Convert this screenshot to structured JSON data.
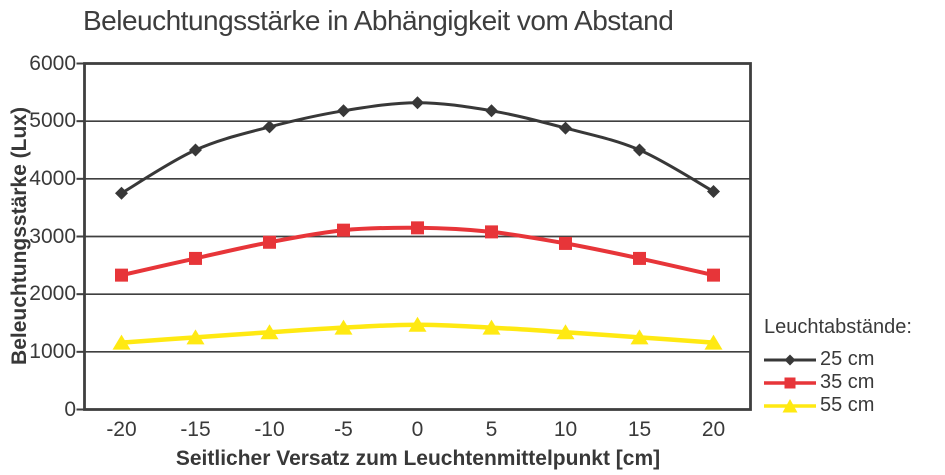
{
  "figure": {
    "background": "#ffffff",
    "text_color": "#3a3a3a",
    "axis_color": "#3f3f3f"
  },
  "chart_data": {
    "type": "line",
    "title": "Beleuchtungsstärke in Abhängigkeit vom Abstand",
    "xlabel": "Seitlicher Versatz zum Leuchtenmittelpunkt [cm]",
    "ylabel": "Beleuchtungsstärke (Lux)",
    "x": [
      -20,
      -15,
      -10,
      -5,
      0,
      5,
      10,
      15,
      20
    ],
    "ylim": [
      0,
      6000
    ],
    "yticks": [
      0,
      1000,
      2000,
      3000,
      4000,
      5000,
      6000
    ],
    "grid": "horizontal",
    "legend_title": "Leuchtabstände:",
    "legend_position": "right",
    "series": [
      {
        "name": "25 cm",
        "marker": "diamond",
        "color": "#383838",
        "values": [
          3750,
          4500,
          4900,
          5180,
          5320,
          5180,
          4880,
          4500,
          3780
        ]
      },
      {
        "name": "35 cm",
        "marker": "square",
        "color": "#e73539",
        "values": [
          2330,
          2620,
          2900,
          3110,
          3150,
          3080,
          2880,
          2620,
          2330
        ]
      },
      {
        "name": "55 cm",
        "marker": "triangle",
        "color": "#ffe912",
        "values": [
          1160,
          1250,
          1340,
          1420,
          1470,
          1420,
          1340,
          1250,
          1160
        ]
      }
    ]
  }
}
